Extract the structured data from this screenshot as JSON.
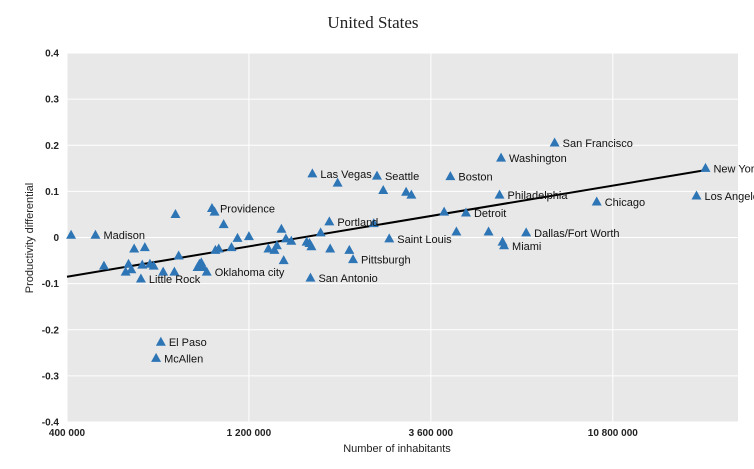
{
  "chart_data": {
    "type": "scatter",
    "title": "United States",
    "xlabel": "Number of inhabitants",
    "ylabel": "Productivity differential",
    "x_scale": "log",
    "xlim": [
      400000,
      23000000
    ],
    "ylim": [
      -0.4,
      0.4
    ],
    "x_ticks": [
      {
        "value": 400000,
        "label": "400 000"
      },
      {
        "value": 1200000,
        "label": "1 200 000"
      },
      {
        "value": 3600000,
        "label": "3 600 000"
      },
      {
        "value": 10800000,
        "label": "10 800 000"
      }
    ],
    "y_ticks": [
      {
        "value": 0.4,
        "label": "0.4"
      },
      {
        "value": 0.3,
        "label": "0.3"
      },
      {
        "value": 0.2,
        "label": "0.2"
      },
      {
        "value": 0.1,
        "label": "0.1"
      },
      {
        "value": 0,
        "label": "0"
      },
      {
        "value": -0.1,
        "label": "-0.1"
      },
      {
        "value": -0.2,
        "label": "-0.2"
      },
      {
        "value": -0.3,
        "label": "-0.3"
      },
      {
        "value": -0.4,
        "label": "-0.4"
      }
    ],
    "grid": true,
    "marker_color": "#2e75b6",
    "plot_background": "#e8e8e8",
    "trendline": {
      "x": [
        400000,
        18900000
      ],
      "y": [
        -0.085,
        0.146
      ],
      "color": "#000000"
    },
    "points": [
      {
        "x": 410000,
        "y": 0.005,
        "label": ""
      },
      {
        "x": 475000,
        "y": 0.005,
        "label": "Madison"
      },
      {
        "x": 500000,
        "y": -0.062,
        "label": ""
      },
      {
        "x": 570000,
        "y": -0.075,
        "label": ""
      },
      {
        "x": 580000,
        "y": -0.058,
        "label": ""
      },
      {
        "x": 590000,
        "y": -0.07,
        "label": ""
      },
      {
        "x": 600000,
        "y": -0.025,
        "label": ""
      },
      {
        "x": 625000,
        "y": -0.09,
        "label": "Little Rock"
      },
      {
        "x": 630000,
        "y": -0.06,
        "label": ""
      },
      {
        "x": 640000,
        "y": -0.022,
        "label": ""
      },
      {
        "x": 660000,
        "y": -0.058,
        "label": ""
      },
      {
        "x": 675000,
        "y": -0.062,
        "label": ""
      },
      {
        "x": 685000,
        "y": -0.262,
        "label": "McAllen"
      },
      {
        "x": 705000,
        "y": -0.227,
        "label": "El Paso"
      },
      {
        "x": 715000,
        "y": -0.075,
        "label": ""
      },
      {
        "x": 765000,
        "y": -0.075,
        "label": ""
      },
      {
        "x": 770000,
        "y": 0.05,
        "label": ""
      },
      {
        "x": 785000,
        "y": -0.04,
        "label": ""
      },
      {
        "x": 880000,
        "y": -0.065,
        "label": ""
      },
      {
        "x": 890000,
        "y": -0.058,
        "label": ""
      },
      {
        "x": 900000,
        "y": -0.055,
        "label": ""
      },
      {
        "x": 910000,
        "y": -0.065,
        "label": ""
      },
      {
        "x": 930000,
        "y": -0.075,
        "label": "Oklahoma city"
      },
      {
        "x": 960000,
        "y": 0.063,
        "label": "Providence"
      },
      {
        "x": 975000,
        "y": 0.055,
        "label": ""
      },
      {
        "x": 980000,
        "y": -0.028,
        "label": ""
      },
      {
        "x": 1000000,
        "y": -0.025,
        "label": ""
      },
      {
        "x": 1030000,
        "y": 0.028,
        "label": ""
      },
      {
        "x": 1080000,
        "y": -0.022,
        "label": ""
      },
      {
        "x": 1120000,
        "y": -0.002,
        "label": ""
      },
      {
        "x": 1200000,
        "y": 0.002,
        "label": ""
      },
      {
        "x": 1350000,
        "y": -0.025,
        "label": ""
      },
      {
        "x": 1400000,
        "y": -0.028,
        "label": ""
      },
      {
        "x": 1420000,
        "y": -0.018,
        "label": ""
      },
      {
        "x": 1460000,
        "y": 0.018,
        "label": ""
      },
      {
        "x": 1480000,
        "y": -0.05,
        "label": ""
      },
      {
        "x": 1500000,
        "y": -0.003,
        "label": ""
      },
      {
        "x": 1550000,
        "y": -0.008,
        "label": ""
      },
      {
        "x": 1700000,
        "y": -0.01,
        "label": ""
      },
      {
        "x": 1730000,
        "y": -0.013,
        "label": ""
      },
      {
        "x": 1740000,
        "y": -0.088,
        "label": "San Antonio"
      },
      {
        "x": 1750000,
        "y": -0.02,
        "label": ""
      },
      {
        "x": 1760000,
        "y": 0.138,
        "label": "Las Vegas"
      },
      {
        "x": 1850000,
        "y": 0.01,
        "label": ""
      },
      {
        "x": 1950000,
        "y": 0.034,
        "label": "Portland"
      },
      {
        "x": 1960000,
        "y": -0.025,
        "label": ""
      },
      {
        "x": 2050000,
        "y": 0.118,
        "label": ""
      },
      {
        "x": 2200000,
        "y": -0.028,
        "label": ""
      },
      {
        "x": 2250000,
        "y": -0.048,
        "label": "Pittsburgh"
      },
      {
        "x": 2550000,
        "y": 0.03,
        "label": ""
      },
      {
        "x": 2600000,
        "y": 0.133,
        "label": "Seattle"
      },
      {
        "x": 2700000,
        "y": 0.102,
        "label": ""
      },
      {
        "x": 2800000,
        "y": -0.003,
        "label": "Saint Louis"
      },
      {
        "x": 3100000,
        "y": 0.098,
        "label": ""
      },
      {
        "x": 3200000,
        "y": 0.092,
        "label": ""
      },
      {
        "x": 3900000,
        "y": 0.055,
        "label": ""
      },
      {
        "x": 4050000,
        "y": 0.132,
        "label": "Boston"
      },
      {
        "x": 4200000,
        "y": 0.012,
        "label": ""
      },
      {
        "x": 4450000,
        "y": 0.053,
        "label": "Detroit"
      },
      {
        "x": 5100000,
        "y": 0.012,
        "label": ""
      },
      {
        "x": 5450000,
        "y": 0.092,
        "label": "Philadelphia"
      },
      {
        "x": 5500000,
        "y": 0.172,
        "label": "Washington"
      },
      {
        "x": 5550000,
        "y": -0.01,
        "label": ""
      },
      {
        "x": 5600000,
        "y": -0.018,
        "label": "Miami"
      },
      {
        "x": 6400000,
        "y": 0.01,
        "label": "Dallas/Fort Worth"
      },
      {
        "x": 7600000,
        "y": 0.205,
        "label": "San Francisco"
      },
      {
        "x": 9800000,
        "y": 0.077,
        "label": "Chicago"
      },
      {
        "x": 17900000,
        "y": 0.09,
        "label": "Los Angeles"
      },
      {
        "x": 18900000,
        "y": 0.15,
        "label": "New York"
      }
    ]
  }
}
